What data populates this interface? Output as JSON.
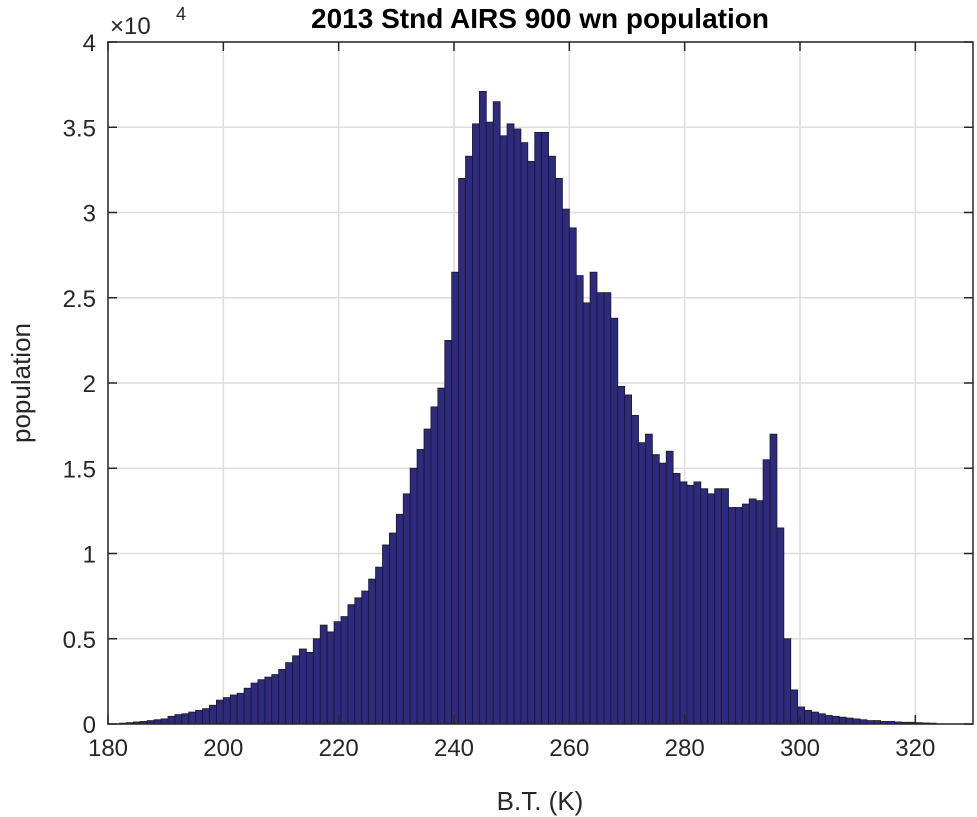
{
  "chart_data": {
    "type": "bar",
    "title": "2013 Stnd AIRS 900 wn population",
    "xlabel": "B.T. (K)",
    "ylabel": "population",
    "y_multiplier": {
      "base": "×10",
      "exponent": "4"
    },
    "xlim": [
      180,
      330
    ],
    "ylim": [
      0,
      4
    ],
    "xticks": [
      180,
      200,
      220,
      240,
      260,
      280,
      300,
      320
    ],
    "yticks": [
      0,
      0.5,
      1,
      1.5,
      2,
      2.5,
      3,
      3.5,
      4
    ],
    "ytick_labels": [
      "0",
      "0.5",
      "1",
      "1.5",
      "2",
      "2.5",
      "3",
      "3.5",
      "4"
    ],
    "grid": true,
    "bar_color": "#2e2a7f",
    "bar_edge_color": "#1a1a1a",
    "bin_start": 182,
    "bin_width": 1.2,
    "values": [
      0.005,
      0.008,
      0.012,
      0.015,
      0.02,
      0.025,
      0.03,
      0.045,
      0.055,
      0.06,
      0.07,
      0.08,
      0.09,
      0.11,
      0.14,
      0.155,
      0.17,
      0.18,
      0.21,
      0.24,
      0.26,
      0.275,
      0.29,
      0.32,
      0.36,
      0.4,
      0.44,
      0.42,
      0.5,
      0.58,
      0.54,
      0.6,
      0.63,
      0.7,
      0.74,
      0.78,
      0.85,
      0.92,
      1.05,
      1.12,
      1.23,
      1.35,
      1.5,
      1.61,
      1.73,
      1.86,
      1.97,
      2.25,
      2.65,
      3.2,
      3.33,
      3.52,
      3.71,
      3.53,
      3.65,
      3.45,
      3.52,
      3.49,
      3.41,
      3.3,
      3.47,
      3.47,
      3.33,
      3.2,
      3.02,
      2.91,
      2.63,
      2.47,
      2.65,
      2.53,
      2.53,
      2.38,
      1.98,
      1.93,
      1.81,
      1.65,
      1.7,
      1.58,
      1.53,
      1.6,
      1.47,
      1.42,
      1.4,
      1.42,
      1.38,
      1.35,
      1.38,
      1.38,
      1.27,
      1.27,
      1.29,
      1.32,
      1.31,
      1.55,
      1.7,
      1.15,
      0.5,
      0.2,
      0.1,
      0.08,
      0.07,
      0.06,
      0.05,
      0.045,
      0.04,
      0.035,
      0.03,
      0.025,
      0.02,
      0.02,
      0.015,
      0.015,
      0.012,
      0.01,
      0.01,
      0.008,
      0.006,
      0.005
    ]
  }
}
